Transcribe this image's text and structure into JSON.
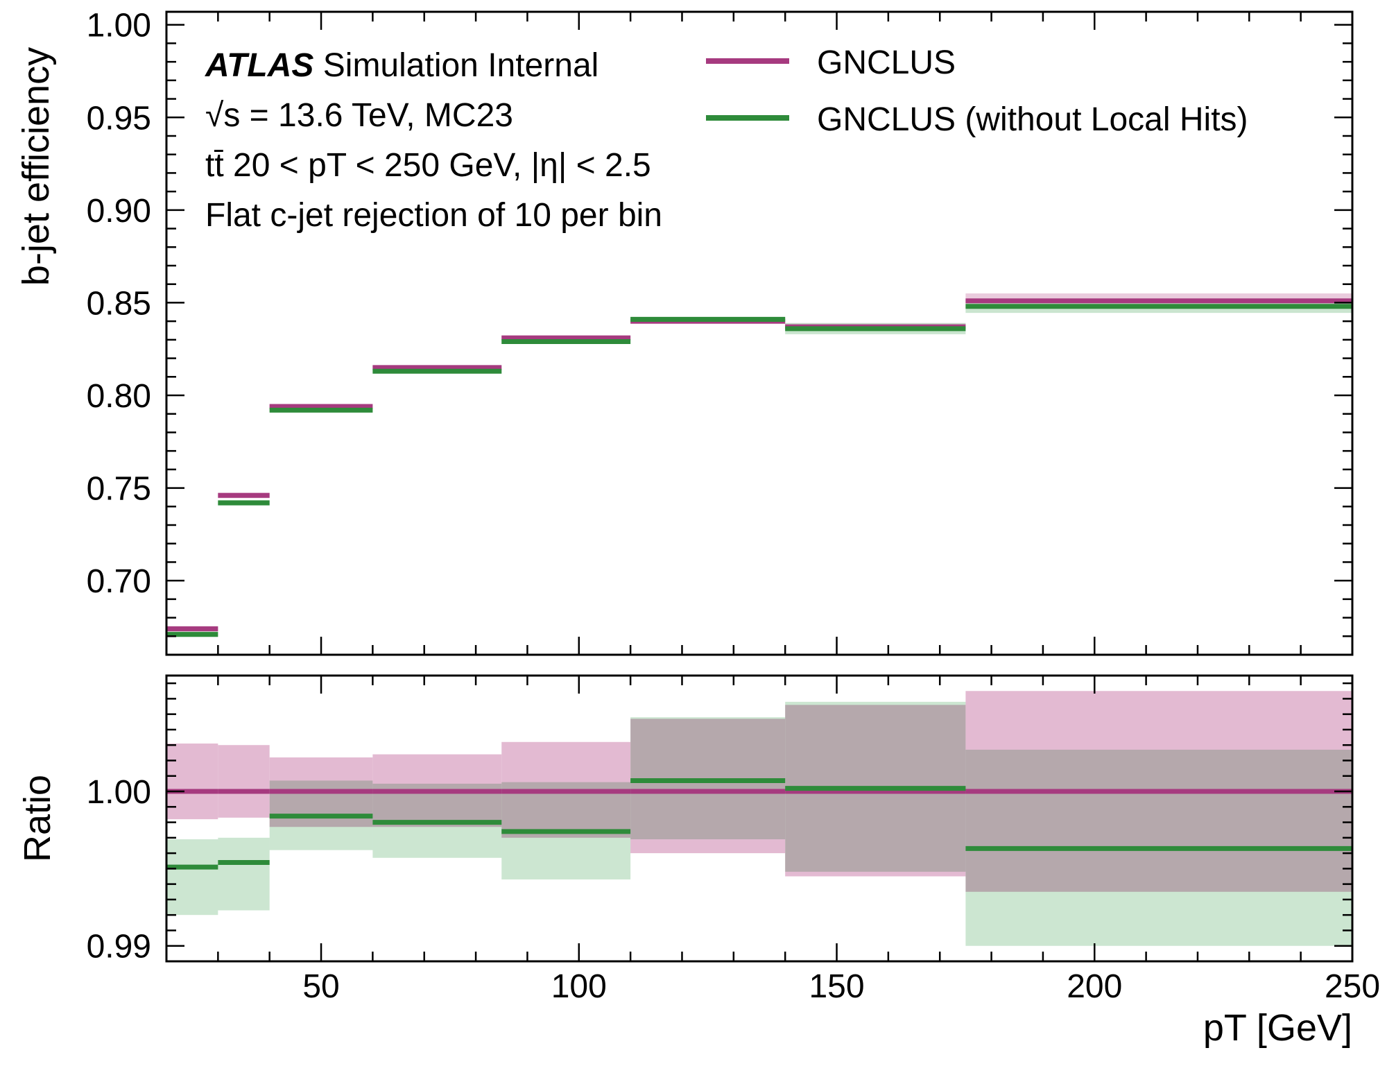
{
  "chart_data": [
    {
      "type": "line",
      "panel": "main",
      "ylabel": "b-jet efficiency",
      "ylim": [
        0.66,
        1.007
      ],
      "xlim": [
        20,
        250
      ],
      "bin_edges": [
        20,
        30,
        40,
        60,
        85,
        110,
        140,
        175,
        250
      ],
      "y_ticks": [
        "0.70",
        "0.75",
        "0.80",
        "0.85",
        "0.90",
        "0.95",
        "1.00"
      ],
      "series": [
        {
          "name": "GNCLUS",
          "color": "#a63a7f",
          "band_color": "#e3bad2",
          "values": [
            0.674,
            0.746,
            0.794,
            0.815,
            0.831,
            0.84,
            0.837,
            0.851
          ],
          "errors": [
            0.0015,
            0.0015,
            0.001,
            0.001,
            0.0012,
            0.0015,
            0.002,
            0.004
          ]
        },
        {
          "name": "GNCLUS (without Local Hits)",
          "color": "#2e8b3a",
          "band_color": "#b8dcbf",
          "values": [
            0.671,
            0.742,
            0.792,
            0.813,
            0.829,
            0.841,
            0.836,
            0.848
          ],
          "errors": [
            0.0015,
            0.0015,
            0.001,
            0.001,
            0.0012,
            0.0015,
            0.003,
            0.0035
          ]
        }
      ],
      "annotations": {
        "experiment": "ATLAS",
        "status": "Simulation Internal",
        "line2": "√s = 13.6 TeV, MC23",
        "line3": "tt̄ 20 < pT < 250 GeV, |η| < 2.5",
        "line4": "Flat c-jet rejection of 10 per bin"
      },
      "legend_position": "top-right",
      "grid": false
    },
    {
      "type": "line",
      "panel": "ratio",
      "ylabel": "Ratio",
      "xlabel": "pT [GeV]",
      "ylim": [
        0.989,
        1.0075
      ],
      "xlim": [
        20,
        250
      ],
      "bin_edges": [
        20,
        30,
        40,
        60,
        85,
        110,
        140,
        175,
        250
      ],
      "x_ticks": [
        "50",
        "100",
        "150",
        "200",
        "250"
      ],
      "y_ticks": [
        "0.99",
        "1.00"
      ],
      "series": [
        {
          "name": "GNCLUS",
          "color": "#a63a7f",
          "band_color": "#e3bad2",
          "values": [
            1.0,
            1.0,
            1.0,
            1.0,
            1.0,
            1.0,
            1.0,
            1.0
          ],
          "band_low": [
            0.9982,
            0.9983,
            0.9977,
            0.9977,
            0.997,
            0.996,
            0.9945,
            0.9935
          ],
          "band_high": [
            1.0031,
            1.003,
            1.0022,
            1.0024,
            1.0032,
            1.0047,
            1.0056,
            1.0065
          ]
        },
        {
          "name": "GNCLUS (without Local Hits)",
          "color": "#2e8b3a",
          "band_color": "#b8dcbf",
          "values": [
            0.9951,
            0.9954,
            0.9984,
            0.998,
            0.9974,
            1.0007,
            1.0002,
            0.9963
          ],
          "band_low": [
            0.992,
            0.9923,
            0.9962,
            0.9957,
            0.9943,
            0.9969,
            0.9948,
            0.99
          ],
          "band_high": [
            0.9969,
            0.997,
            1.0007,
            1.0005,
            1.0006,
            1.0048,
            1.0058,
            1.0027
          ]
        }
      ],
      "grid": false
    }
  ]
}
